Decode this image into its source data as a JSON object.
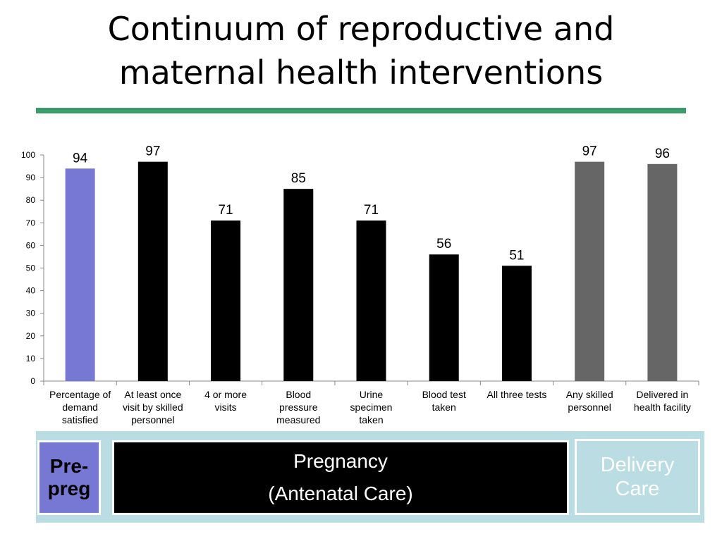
{
  "title_line1": "Continuum of reproductive and",
  "title_line2": "maternal health interventions",
  "colors": {
    "rule": "#3a9b6b",
    "prepregnancy": "#7777d4",
    "antenatal": "#000000",
    "delivery": "#666666",
    "band": "#b9dde2"
  },
  "chart_data": {
    "type": "bar",
    "categories": [
      [
        "Percentage of",
        "demand",
        "satisfied"
      ],
      [
        "At least once",
        "visit by skilled",
        "personnel"
      ],
      [
        "4 or more",
        "visits"
      ],
      [
        "Blood",
        "pressure",
        "measured"
      ],
      [
        "Urine",
        "specimen",
        "taken"
      ],
      [
        "Blood test",
        "taken"
      ],
      [
        "All three tests"
      ],
      [
        "Any skilled",
        "personnel"
      ],
      [
        "Delivered in",
        "health facility"
      ]
    ],
    "values": [
      94,
      97,
      71,
      85,
      71,
      56,
      51,
      97,
      96
    ],
    "data_labels": [
      "94",
      "97",
      "71",
      "85",
      "71",
      "56",
      "51",
      "97",
      "96"
    ],
    "groups": [
      "prepregnancy",
      "antenatal",
      "antenatal",
      "antenatal",
      "antenatal",
      "antenatal",
      "antenatal",
      "delivery",
      "delivery"
    ],
    "ylim": [
      0,
      100
    ],
    "yticks": [
      0,
      10,
      20,
      30,
      40,
      50,
      60,
      70,
      80,
      90,
      100
    ],
    "grid": false,
    "legend": "none"
  },
  "phases": {
    "pre_line1": "Pre-",
    "pre_line2": "preg",
    "pregnancy_line1": "Pregnancy",
    "pregnancy_line2": "(Antenatal Care)",
    "delivery_line1": "Delivery",
    "delivery_line2": "Care"
  }
}
